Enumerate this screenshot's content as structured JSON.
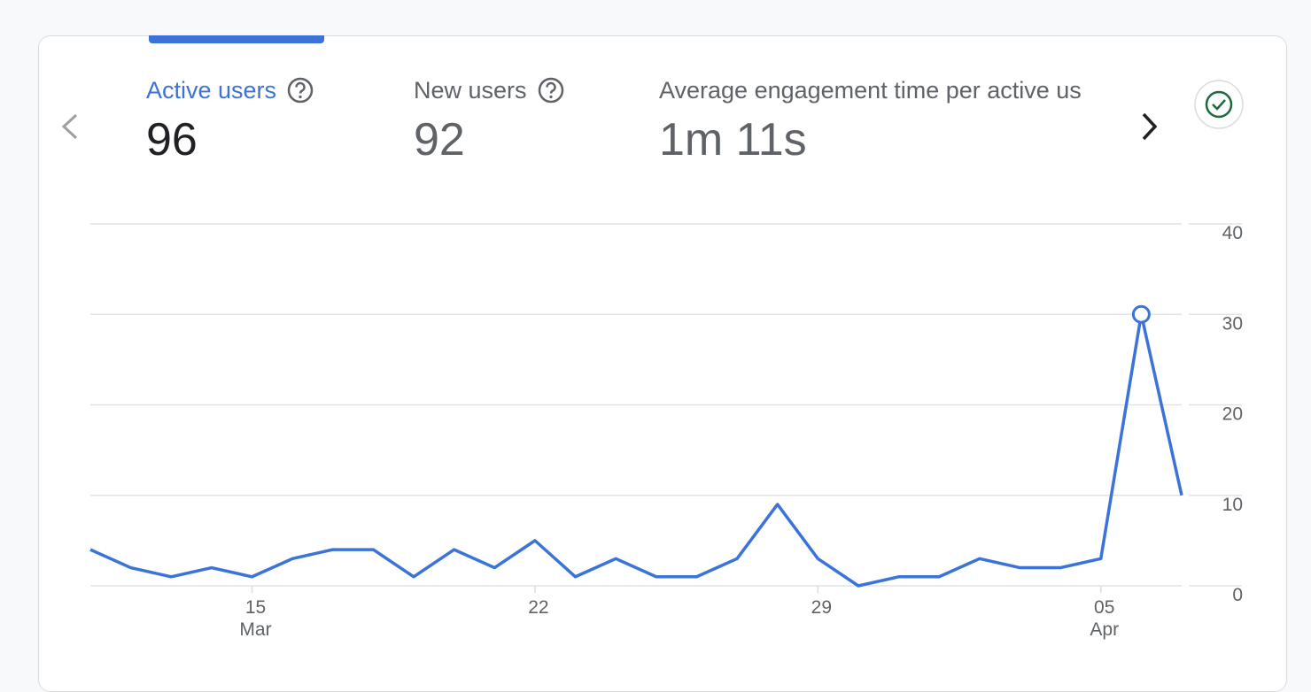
{
  "metrics": [
    {
      "label": "Active users",
      "value": "96"
    },
    {
      "label": "New users",
      "value": "92"
    },
    {
      "label": "Average engagement time per active us",
      "value": "1m 11s"
    }
  ],
  "chart_data": {
    "type": "line",
    "categories": [
      null,
      null,
      null,
      null,
      "15",
      null,
      null,
      null,
      null,
      null,
      null,
      "22",
      null,
      null,
      null,
      null,
      null,
      null,
      "29",
      null,
      null,
      null,
      null,
      null,
      null,
      "05",
      null,
      null
    ],
    "category_sublabels": [
      null,
      null,
      null,
      null,
      "Mar",
      null,
      null,
      null,
      null,
      null,
      null,
      null,
      null,
      null,
      null,
      null,
      null,
      null,
      null,
      null,
      null,
      null,
      null,
      null,
      null,
      "Apr",
      null,
      null
    ],
    "series": [
      {
        "name": "Active users",
        "color": "#3b73d9",
        "values": [
          4,
          2,
          1,
          2,
          1,
          3,
          4,
          4,
          1,
          4,
          2,
          5,
          1,
          3,
          1,
          1,
          3,
          9,
          3,
          0,
          1,
          1,
          3,
          2,
          2,
          3,
          30,
          10
        ]
      }
    ],
    "highlight_index": 26,
    "ylim": [
      0,
      40
    ],
    "yticks": [
      0,
      10,
      20,
      30,
      40
    ],
    "grid": true,
    "y_axis_side": "right"
  }
}
